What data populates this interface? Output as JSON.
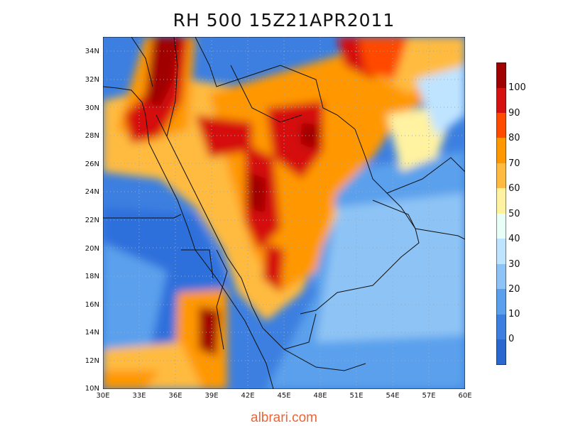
{
  "title": "RH 500 15Z21APR2011",
  "footer": "albrari.com",
  "map": {
    "variable": "Relative humidity at 500 hPa",
    "lon_range": [
      30,
      60
    ],
    "lat_range": [
      10,
      35
    ],
    "lon_ticks": [
      "30E",
      "33E",
      "36E",
      "39E",
      "42E",
      "45E",
      "48E",
      "51E",
      "54E",
      "57E",
      "60E"
    ],
    "lat_ticks": [
      "10N",
      "12N",
      "14N",
      "16N",
      "18N",
      "20N",
      "22N",
      "24N",
      "26N",
      "28N",
      "30N",
      "32N",
      "34N"
    ]
  },
  "colorbar": {
    "labels": [
      "100",
      "90",
      "80",
      "70",
      "60",
      "50",
      "40",
      "30",
      "20",
      "10",
      "0"
    ],
    "colors_top_to_bottom": [
      "#a00000",
      "#d51010",
      "#ff4a00",
      "#ff9800",
      "#ffbb40",
      "#fff2a0",
      "#e8fff8",
      "#bfe4ff",
      "#8ec4f5",
      "#5aa0ec",
      "#3c7fe0",
      "#2a67cf"
    ]
  },
  "colors": {
    "ocean_dry": "#2f6fdb",
    "coast": "#111111",
    "footer": "#e8663a"
  }
}
